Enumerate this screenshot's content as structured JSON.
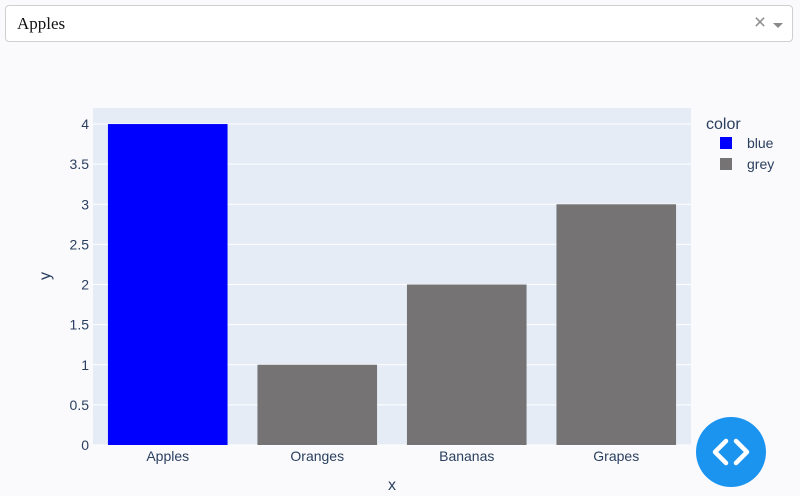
{
  "dropdown": {
    "selected": "Apples",
    "clear_glyph": "×",
    "clear_icon": "close-icon",
    "arrow_icon": "caret-down-icon"
  },
  "chart_data": {
    "type": "bar",
    "categories": [
      "Apples",
      "Oranges",
      "Bananas",
      "Grapes"
    ],
    "values": [
      4,
      1,
      2,
      3
    ],
    "bar_colors": [
      "#0000ff",
      "#757373",
      "#757373",
      "#757373"
    ],
    "xlabel": "x",
    "ylabel": "y",
    "ylim": [
      0,
      4.2
    ],
    "yticks": [
      0,
      0.5,
      1,
      1.5,
      2,
      2.5,
      3,
      3.5,
      4
    ],
    "ytick_labels": [
      "0",
      "0.5",
      "1",
      "1.5",
      "2",
      "2.5",
      "3",
      "3.5",
      "4"
    ],
    "grid": true,
    "plot_background": "#e5ecf6",
    "legend": {
      "title": "color",
      "placement": "right",
      "items": [
        {
          "label": "blue",
          "color": "#0000ff"
        },
        {
          "label": "grey",
          "color": "#757373"
        }
      ]
    }
  },
  "fab": {
    "icon": "code-icon",
    "color": "#1b94f0"
  }
}
